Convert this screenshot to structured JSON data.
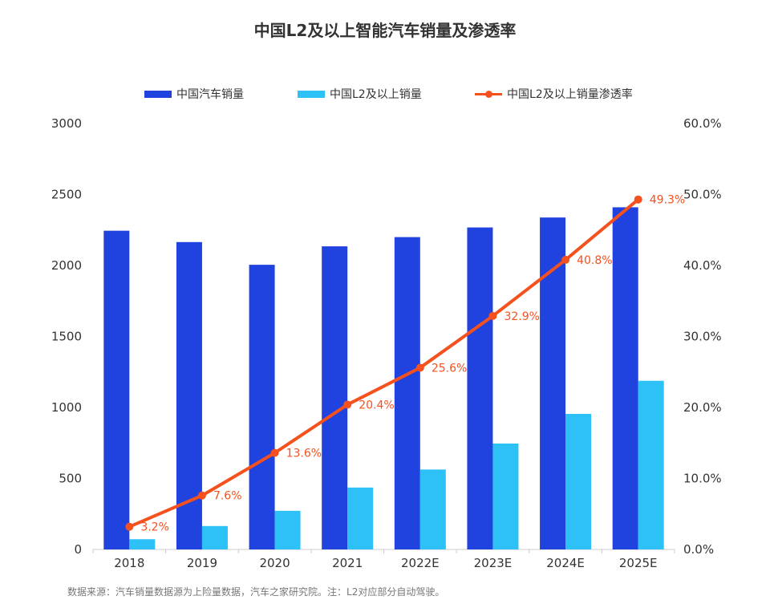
{
  "title": "中国L2及以上智能汽车销量及渗透率",
  "source": "数据来源：汽车销量数据源为上险量数据，汽车之家研究院。注：L2对应部分自动驾驶。",
  "colors": {
    "series1": "#2042de",
    "series2": "#2ec1f7",
    "line": "#f4511e",
    "axis": "#333333",
    "label": "#f4511e"
  },
  "chart_data": {
    "type": "bar",
    "categories": [
      "2018",
      "2019",
      "2020",
      "2021",
      "2022E",
      "2023E",
      "2024E",
      "2025E"
    ],
    "series": [
      {
        "name": "中国汽车销量",
        "type": "bar",
        "axis": "left",
        "values": [
          2245,
          2165,
          2005,
          2135,
          2200,
          2268,
          2338,
          2410
        ]
      },
      {
        "name": "中国L2及以上销量",
        "type": "bar",
        "axis": "left",
        "values": [
          72,
          165,
          272,
          436,
          563,
          746,
          955,
          1188
        ]
      },
      {
        "name": "中国L2及以上销量渗透率",
        "type": "line",
        "axis": "right",
        "values": [
          3.2,
          7.6,
          13.6,
          20.4,
          25.6,
          32.9,
          40.8,
          49.3
        ],
        "labels": [
          "3.2%",
          "7.6%",
          "13.6%",
          "20.4%",
          "25.6%",
          "32.9%",
          "40.8%",
          "49.3%"
        ]
      }
    ],
    "y_left": {
      "lim": [
        0,
        3000
      ],
      "ticks": [
        "0",
        "500",
        "1000",
        "1500",
        "2000",
        "2500",
        "3000"
      ]
    },
    "y_right": {
      "lim": [
        0,
        60
      ],
      "ticks": [
        "0.0%",
        "10.0%",
        "20.0%",
        "30.0%",
        "40.0%",
        "50.0%",
        "60.0%"
      ]
    },
    "xlabel": "",
    "ylabel": "",
    "grid": false,
    "legend": "top-center"
  }
}
